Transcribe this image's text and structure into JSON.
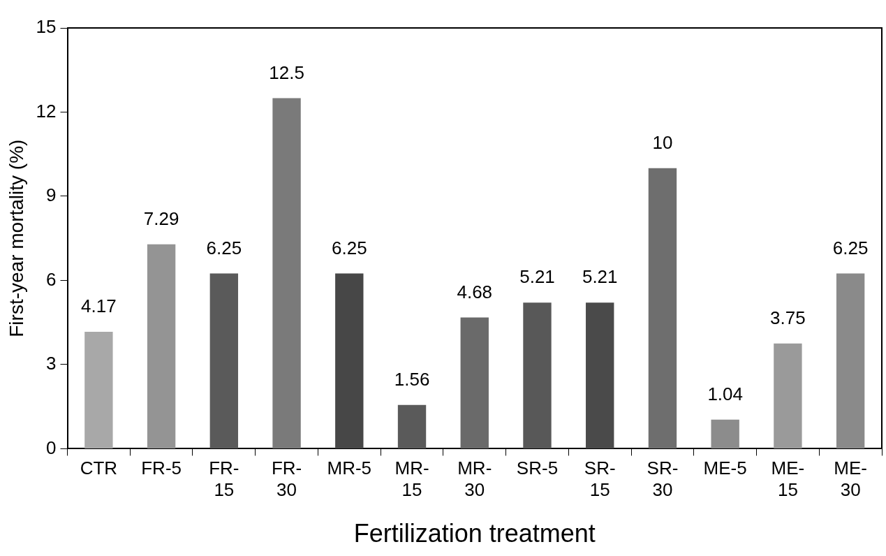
{
  "chart_data": {
    "type": "bar",
    "xlabel": "Fertilization treatment",
    "ylabel": "First-year mortality (%)",
    "categories": [
      "CTR",
      "FR-5",
      "FR-15",
      "FR-30",
      "MR-5",
      "MR-15",
      "MR-30",
      "SR-5",
      "SR-15",
      "SR-30",
      "ME-5",
      "ME-15",
      "ME-30"
    ],
    "values": [
      4.17,
      7.29,
      6.25,
      12.5,
      6.25,
      1.56,
      4.68,
      5.21,
      5.21,
      10,
      1.04,
      3.75,
      6.25
    ],
    "colors": [
      "#a8a8a8",
      "#949494",
      "#5a5a5a",
      "#7a7a7a",
      "#474747",
      "#5a5a5a",
      "#6a6a6a",
      "#585858",
      "#4a4a4a",
      "#6e6e6e",
      "#8c8c8c",
      "#9a9a9a",
      "#8a8a8a"
    ],
    "ylim": [
      0,
      15
    ],
    "yticks": [
      0,
      3,
      6,
      9,
      12,
      15
    ],
    "data_labels": true,
    "grid": false,
    "legend": false
  }
}
